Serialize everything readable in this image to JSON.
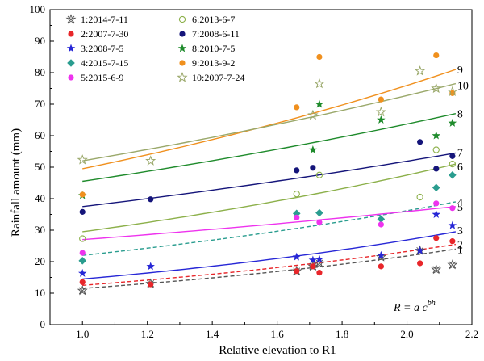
{
  "chart_data": {
    "type": "scatter",
    "xlabel": "Relative elevation to R1",
    "ylabel": "Rainfall amount (mm)",
    "xlim": [
      0.9,
      2.2
    ],
    "ylim": [
      0,
      100
    ],
    "x_ticks": [
      "1.0",
      "1.2",
      "1.4",
      "1.6",
      "1.8",
      "2.0",
      "2.2"
    ],
    "y_ticks": [
      "0",
      "10",
      "20",
      "30",
      "40",
      "50",
      "60",
      "70",
      "80",
      "90",
      "100"
    ],
    "legend_position": "top-left",
    "formula": {
      "prefix": "R = a c",
      "exponent": "bh"
    },
    "x_positions": [
      1.0,
      1.21,
      1.66,
      1.71,
      1.73,
      1.92,
      2.04,
      2.09,
      2.14
    ],
    "series": [
      {
        "name": "1:2014-7-11",
        "curve_label": "1",
        "marker": "xstar",
        "color": "#555555",
        "dashed": true,
        "values": [
          10.8,
          13.0,
          17.0,
          18.5,
          19.5,
          21.5,
          23.5,
          17.5,
          19.0
        ],
        "fit": [
          11.5,
          24.0
        ]
      },
      {
        "name": "2:2007-7-30",
        "curve_label": "2",
        "marker": "circle",
        "color": "#e8262a",
        "dashed": true,
        "values": [
          13.5,
          12.8,
          17.0,
          18.5,
          16.5,
          18.5,
          19.5,
          27.5,
          26.5
        ],
        "fit": [
          12.5,
          25.5
        ]
      },
      {
        "name": "3:2008-7-5",
        "curve_label": "3",
        "marker": "star",
        "color": "#2727d6",
        "dashed": false,
        "values": [
          16.3,
          18.5,
          21.5,
          20.5,
          20.8,
          22.0,
          23.5,
          35.0,
          31.5
        ],
        "fit": [
          14.5,
          29.5
        ]
      },
      {
        "name": "4:2015-7-15",
        "curve_label": "4",
        "marker": "diamond",
        "color": "#2a9d8f",
        "dashed": true,
        "values": [
          20.3,
          null,
          35.3,
          null,
          35.5,
          33.5,
          null,
          43.5,
          47.5
        ],
        "fit": [
          22.0,
          39.0
        ]
      },
      {
        "name": "5:2015-6-9",
        "curve_label": "5",
        "marker": "circle",
        "color": "#ee33ee",
        "dashed": false,
        "values": [
          22.8,
          null,
          34.0,
          null,
          32.5,
          31.8,
          null,
          38.5,
          37.0
        ],
        "fit": [
          27.0,
          37.5
        ]
      },
      {
        "name": "6:2013-6-7",
        "curve_label": "6",
        "marker": "ocircle",
        "color": "#8cb04a",
        "dashed": false,
        "values": [
          27.3,
          null,
          41.5,
          null,
          47.5,
          null,
          40.5,
          55.5,
          51.0
        ],
        "fit": [
          29.5,
          51.0
        ]
      },
      {
        "name": "7:2008-6-11",
        "curve_label": "7",
        "marker": "circle",
        "color": "#15157a",
        "dashed": false,
        "values": [
          35.8,
          39.8,
          49.0,
          49.8,
          null,
          null,
          58.0,
          49.5,
          53.5
        ],
        "fit": [
          37.5,
          54.5
        ]
      },
      {
        "name": "8:2010-7-5",
        "curve_label": "8",
        "marker": "star",
        "color": "#1f8b2c",
        "dashed": false,
        "values": [
          41.0,
          null,
          null,
          55.5,
          70.0,
          65.0,
          null,
          60.0,
          64.0
        ],
        "fit": [
          45.5,
          67.0
        ]
      },
      {
        "name": "9:2013-9-2",
        "curve_label": "9",
        "marker": "circle",
        "color": "#f0901e",
        "dashed": false,
        "values": [
          41.3,
          null,
          69.0,
          null,
          85.0,
          71.5,
          null,
          85.5,
          73.5
        ],
        "fit": [
          49.5,
          81.0
        ]
      },
      {
        "name": "10:2007-7-24",
        "curve_label": "10",
        "marker": "ostar",
        "color": "#9aa86a",
        "dashed": false,
        "values": [
          52.3,
          52.0,
          null,
          66.5,
          76.5,
          67.5,
          80.5,
          75.0,
          74.0
        ],
        "fit": [
          52.0,
          76.5
        ]
      }
    ]
  }
}
